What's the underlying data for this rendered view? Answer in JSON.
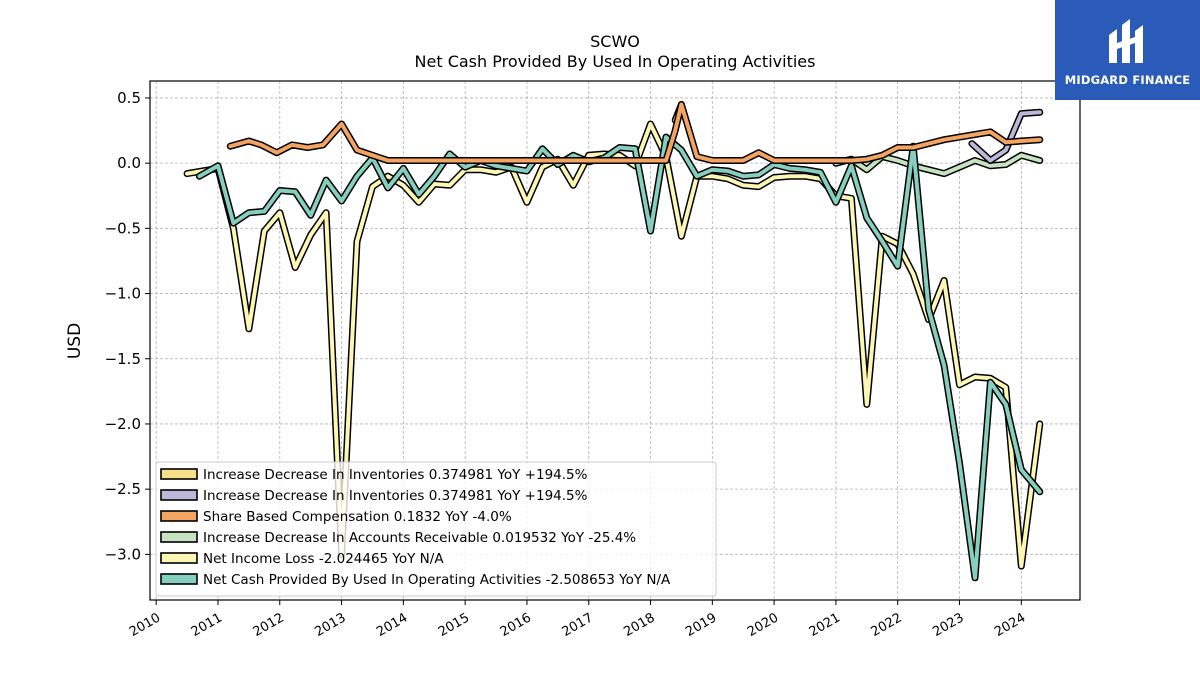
{
  "brand": {
    "name": "MIDGARD FINANCE",
    "color": "#2a5bb8"
  },
  "chart_data": {
    "type": "line",
    "title": "SCWO",
    "subtitle": "Net Cash Provided By Used In Operating Activities",
    "ylabel": "USD",
    "xlabel": "",
    "xlim": [
      2009.9,
      2024.95
    ],
    "ylim": [
      -3.35,
      0.63
    ],
    "yticks": [
      0.5,
      0.0,
      -0.5,
      -1.0,
      -1.5,
      -2.0,
      -2.5,
      -3.0
    ],
    "ytick_labels": [
      "0.5",
      "0.0",
      "−0.5",
      "−1.0",
      "−1.5",
      "−2.0",
      "−2.5",
      "−3.0"
    ],
    "xticks": [
      2010,
      2011,
      2012,
      2013,
      2014,
      2015,
      2016,
      2017,
      2018,
      2019,
      2020,
      2021,
      2022,
      2023,
      2024
    ],
    "xtick_labels": [
      "2010",
      "2011",
      "2012",
      "2013",
      "2014",
      "2015",
      "2016",
      "2017",
      "2018",
      "2019",
      "2020",
      "2021",
      "2022",
      "2023",
      "2024"
    ],
    "grid": true,
    "legend_position": "lower-left",
    "series": [
      {
        "name": "Increase Decrease In Inventories  0.374981 YoY +194.5%",
        "color": "#f8e08a",
        "x": [
          2018.4,
          2018.5
        ],
        "y": [
          0.33,
          0.45
        ]
      },
      {
        "name": "Increase Decrease In Inventories  0.374981 YoY +194.5%",
        "color": "#bcb8d8",
        "x": [
          2023.2,
          2023.5,
          2023.75,
          2024.0,
          2024.3
        ],
        "y": [
          0.15,
          0.02,
          0.1,
          0.38,
          0.39
        ]
      },
      {
        "name": "Share Based Compensation  0.1832 YoY -4.0%",
        "color": "#f4a462",
        "x": [
          2011.2,
          2011.5,
          2011.7,
          2011.95,
          2012.2,
          2012.45,
          2012.7,
          2013.0,
          2013.25,
          2013.5,
          2013.75,
          2014.0,
          2014.5,
          2015.0,
          2015.5,
          2016.0,
          2016.5,
          2017.0,
          2017.5,
          2018.0,
          2018.25,
          2018.4,
          2018.5,
          2018.75,
          2019.0,
          2019.5,
          2019.75,
          2020.0,
          2020.5,
          2021.0,
          2021.25,
          2021.5,
          2021.75,
          2022.0,
          2022.25,
          2022.5,
          2022.75,
          2023.0,
          2023.25,
          2023.5,
          2023.75,
          2024.0,
          2024.3
        ],
        "y": [
          0.13,
          0.17,
          0.14,
          0.08,
          0.14,
          0.12,
          0.14,
          0.3,
          0.1,
          0.06,
          0.02,
          0.02,
          0.02,
          0.02,
          0.02,
          0.02,
          0.02,
          0.02,
          0.02,
          0.02,
          0.02,
          0.25,
          0.45,
          0.05,
          0.02,
          0.02,
          0.08,
          0.02,
          0.02,
          0.02,
          0.02,
          0.03,
          0.06,
          0.12,
          0.12,
          0.15,
          0.18,
          0.2,
          0.22,
          0.24,
          0.16,
          0.17,
          0.18
        ]
      },
      {
        "name": "Increase Decrease In Accounts Receivable  0.019532 YoY -25.4%",
        "color": "#c7e4c0",
        "x": [
          2021.0,
          2021.25,
          2021.5,
          2021.75,
          2022.0,
          2022.25,
          2022.5,
          2022.75,
          2023.0,
          2023.25,
          2023.5,
          2023.75,
          2024.0,
          2024.3
        ],
        "y": [
          0.0,
          0.03,
          -0.05,
          0.05,
          0.02,
          -0.02,
          -0.05,
          -0.08,
          -0.03,
          0.02,
          -0.02,
          -0.01,
          0.06,
          0.02
        ]
      },
      {
        "name": "Net Income Loss  -2.024465 YoY N/A",
        "color": "#fcf7b4",
        "x": [
          2010.5,
          2010.75,
          2011.0,
          2011.25,
          2011.5,
          2011.75,
          2012.0,
          2012.25,
          2012.5,
          2012.75,
          2013.0,
          2013.25,
          2013.5,
          2013.75,
          2014.0,
          2014.25,
          2014.5,
          2014.75,
          2015.0,
          2015.25,
          2015.5,
          2015.75,
          2016.0,
          2016.25,
          2016.5,
          2016.75,
          2017.0,
          2017.25,
          2017.5,
          2017.75,
          2018.0,
          2018.25,
          2018.5,
          2018.75,
          2019.0,
          2019.25,
          2019.5,
          2019.75,
          2020.0,
          2020.25,
          2020.5,
          2020.75,
          2021.0,
          2021.25,
          2021.5,
          2021.75,
          2022.0,
          2022.25,
          2022.5,
          2022.75,
          2023.0,
          2023.25,
          2023.5,
          2023.75,
          2024.0,
          2024.3
        ],
        "y": [
          -0.08,
          -0.06,
          -0.04,
          -0.5,
          -1.27,
          -0.52,
          -0.38,
          -0.8,
          -0.55,
          -0.38,
          -3.0,
          -0.6,
          -0.18,
          -0.1,
          -0.17,
          -0.3,
          -0.16,
          -0.17,
          -0.05,
          -0.05,
          -0.07,
          -0.03,
          -0.3,
          -0.03,
          0.03,
          -0.17,
          0.06,
          0.07,
          0.06,
          -0.02,
          0.3,
          0.05,
          -0.56,
          -0.1,
          -0.1,
          -0.12,
          -0.17,
          -0.18,
          -0.11,
          -0.1,
          -0.1,
          -0.12,
          -0.25,
          -0.27,
          -1.85,
          -0.56,
          -0.62,
          -0.85,
          -1.2,
          -0.9,
          -1.7,
          -1.64,
          -1.65,
          -1.72,
          -3.09,
          -2.0
        ]
      },
      {
        "name": "Net Cash Provided By Used In Operating Activities  -2.508653 YoY N/A",
        "color": "#86cebe",
        "x": [
          2010.7,
          2011.0,
          2011.25,
          2011.5,
          2011.75,
          2012.0,
          2012.25,
          2012.5,
          2012.75,
          2013.0,
          2013.25,
          2013.5,
          2013.75,
          2014.0,
          2014.25,
          2014.5,
          2014.75,
          2015.0,
          2015.25,
          2015.5,
          2015.75,
          2016.0,
          2016.25,
          2016.5,
          2016.75,
          2017.0,
          2017.25,
          2017.5,
          2017.75,
          2018.0,
          2018.25,
          2018.5,
          2018.75,
          2019.0,
          2019.25,
          2019.5,
          2019.75,
          2020.0,
          2020.25,
          2020.5,
          2020.75,
          2021.0,
          2021.25,
          2021.5,
          2021.75,
          2022.0,
          2022.25,
          2022.5,
          2022.75,
          2023.0,
          2023.25,
          2023.5,
          2023.75,
          2024.0,
          2024.3
        ],
        "y": [
          -0.1,
          -0.02,
          -0.46,
          -0.38,
          -0.37,
          -0.21,
          -0.22,
          -0.4,
          -0.13,
          -0.29,
          -0.1,
          0.04,
          -0.19,
          -0.04,
          -0.24,
          -0.1,
          0.07,
          -0.03,
          0.02,
          -0.02,
          -0.04,
          -0.06,
          0.11,
          -0.01,
          0.06,
          0.01,
          0.04,
          0.12,
          0.11,
          -0.52,
          0.2,
          0.1,
          -0.1,
          -0.05,
          -0.06,
          -0.1,
          -0.09,
          -0.01,
          -0.04,
          -0.05,
          -0.07,
          -0.3,
          -0.02,
          -0.42,
          -0.6,
          -0.79,
          0.13,
          -1.12,
          -1.55,
          -2.3,
          -3.18,
          -1.68,
          -1.85,
          -2.35,
          -2.52
        ]
      }
    ]
  }
}
